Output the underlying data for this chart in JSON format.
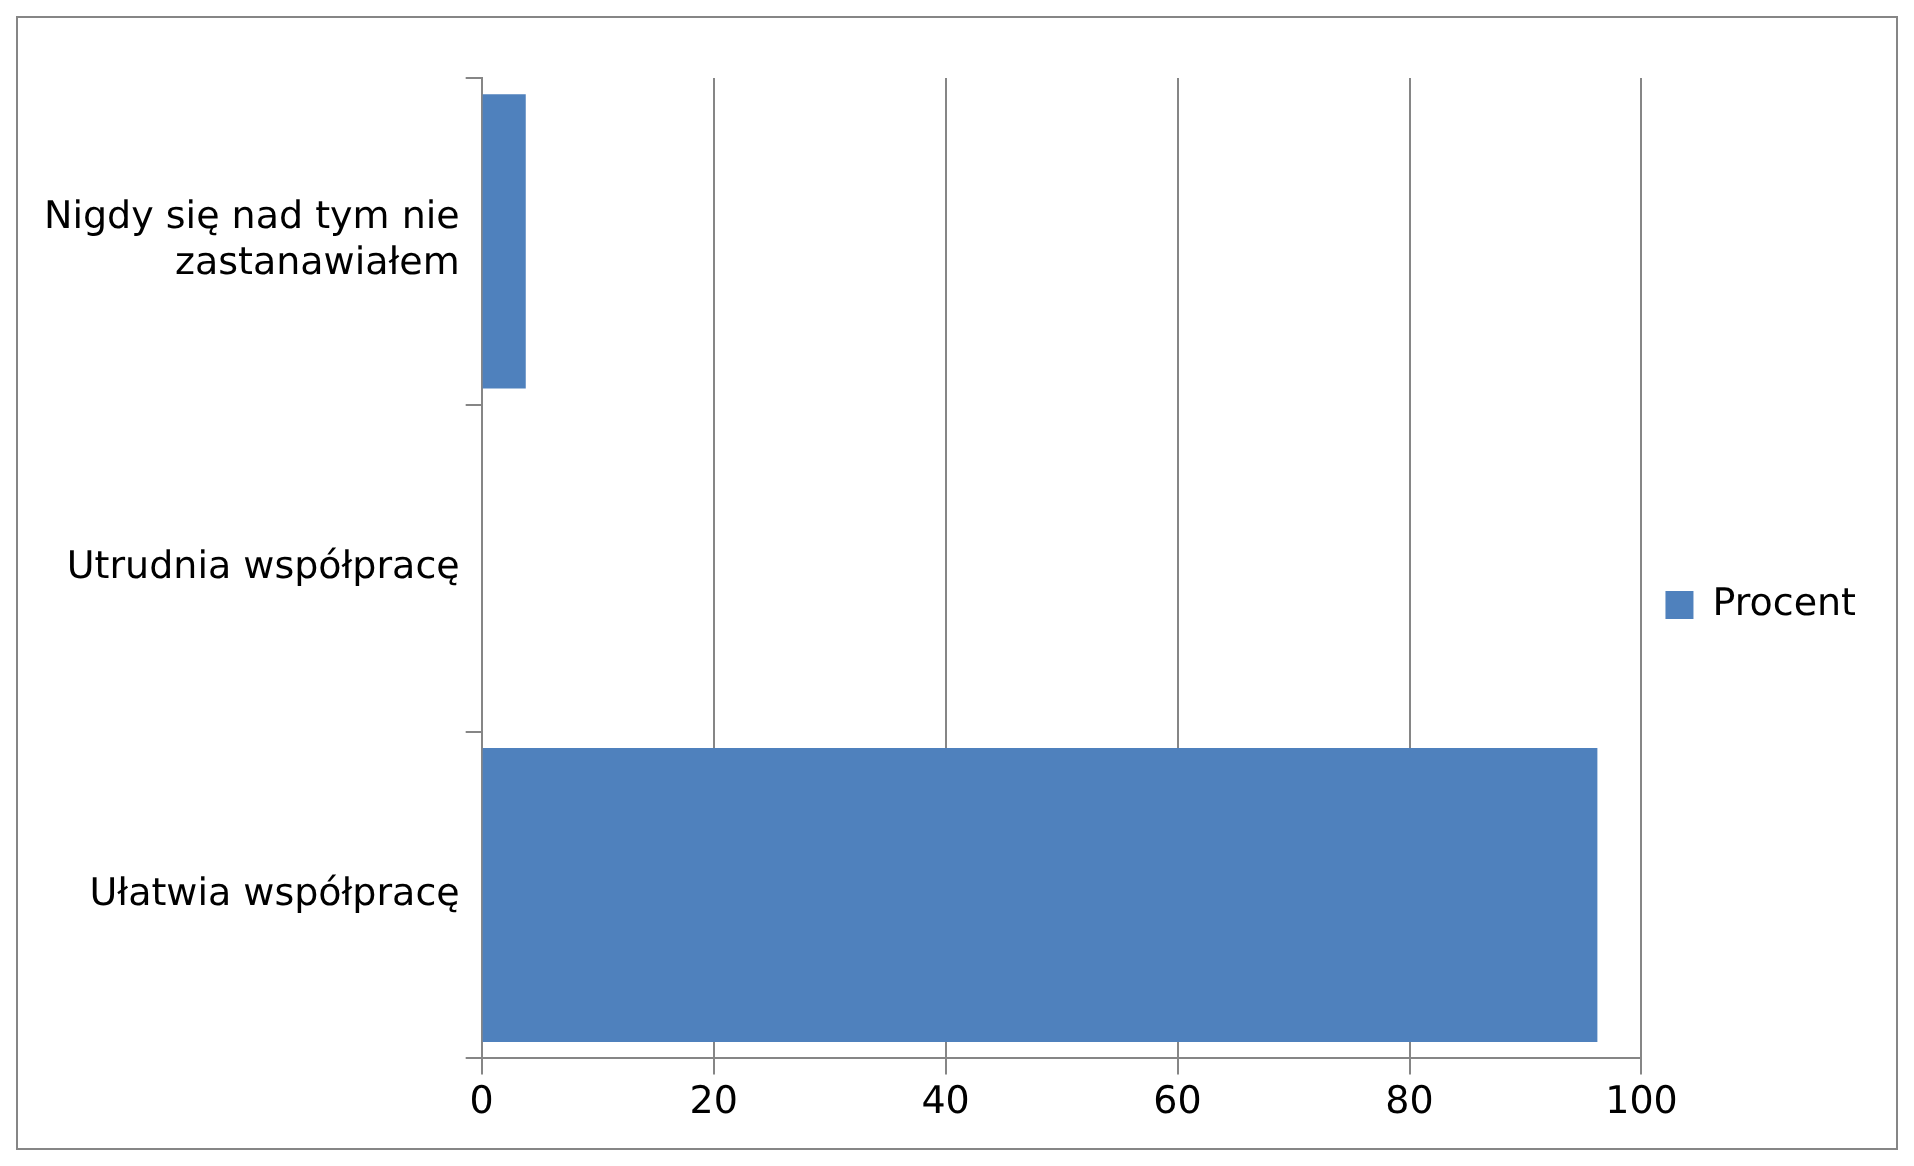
{
  "chart_data": {
    "type": "bar",
    "orientation": "horizontal",
    "categories": [
      "Nigdy się nad tym nie zastanawiałem",
      "Utrudnia współpracę",
      "Ułatwia współpracę"
    ],
    "series": [
      {
        "name": "Procent",
        "color": "#4f81bd",
        "values": [
          3.8,
          0,
          96.2
        ]
      }
    ],
    "xlim": [
      0,
      100
    ],
    "xticks": [
      0,
      20,
      40,
      60,
      80,
      100
    ],
    "grid": "x",
    "legend": "right"
  }
}
